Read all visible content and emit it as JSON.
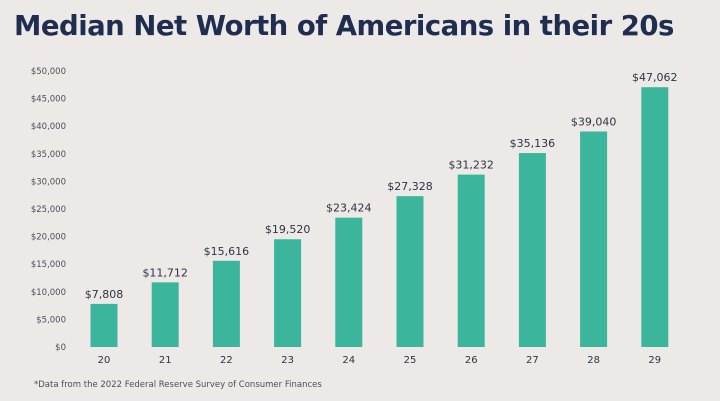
{
  "chart_data": {
    "type": "bar",
    "title": "Median Net Worth of Americans in their 20s",
    "xlabel": "",
    "ylabel": "",
    "categories": [
      "20",
      "21",
      "22",
      "23",
      "24",
      "25",
      "26",
      "27",
      "28",
      "29"
    ],
    "values": [
      7808,
      11712,
      15616,
      19520,
      23424,
      27328,
      31232,
      35136,
      39040,
      47062
    ],
    "data_labels": [
      "$7,808",
      "$11,712",
      "$15,616",
      "$19,520",
      "$23,424",
      "$27,328",
      "$31,232",
      "$35,136",
      "$39,040",
      "$47,062"
    ],
    "ylim": [
      0,
      50000
    ],
    "yticks": [
      0,
      5000,
      10000,
      15000,
      20000,
      25000,
      30000,
      35000,
      40000,
      45000,
      50000
    ],
    "ytick_labels": [
      "$0",
      "$5,000",
      "$10,000",
      "$15,000",
      "$20,000",
      "$25,000",
      "$30,000",
      "$35,000",
      "$40,000",
      "$45,000",
      "$50,000"
    ],
    "grid": false,
    "bar_color": "#3bb59b",
    "footnote": "*Data from the 2022 Federal Reserve Survey of Consumer Finances"
  }
}
